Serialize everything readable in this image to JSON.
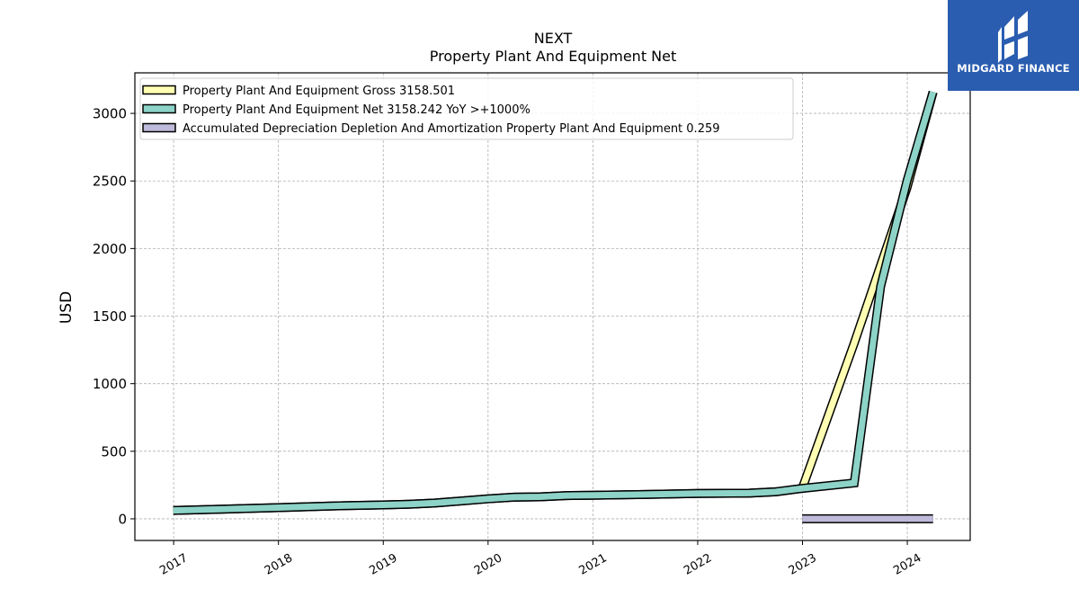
{
  "chart_data": {
    "type": "line",
    "title": "NEXT",
    "subtitle": "Property Plant And Equipment Net",
    "ylabel": "USD",
    "xlabel": "",
    "ylim": [
      -160,
      3300
    ],
    "xlim": [
      2016.63,
      2024.6
    ],
    "yticks": [
      0,
      500,
      1000,
      1500,
      2000,
      2500,
      3000
    ],
    "xticks": [
      "2017",
      "2018",
      "2019",
      "2020",
      "2021",
      "2022",
      "2023",
      "2024"
    ],
    "grid": true,
    "legend_position": "top-left",
    "series": [
      {
        "name": "Property Plant And Equipment Gross",
        "legend": "Property Plant And Equipment Gross  3158.501",
        "color": "#ffffb3",
        "points": [
          [
            "2016-12-31",
            62
          ],
          [
            "2017-06-30",
            72
          ],
          [
            "2017-12-31",
            83
          ],
          [
            "2018-06-30",
            95
          ],
          [
            "2018-12-31",
            103
          ],
          [
            "2019-03-31",
            108
          ],
          [
            "2019-06-30",
            117
          ],
          [
            "2019-12-31",
            148
          ],
          [
            "2020-03-31",
            160
          ],
          [
            "2020-06-30",
            163
          ],
          [
            "2020-09-30",
            172
          ],
          [
            "2020-12-31",
            175
          ],
          [
            "2021-06-30",
            180
          ],
          [
            "2021-12-31",
            187
          ],
          [
            "2022-06-30",
            190
          ],
          [
            "2022-09-30",
            200
          ],
          [
            "2022-12-31",
            225
          ],
          [
            "2023-06-30",
            1300
          ],
          [
            "2023-12-31",
            2450
          ],
          [
            "2024-03-31",
            3158.501
          ]
        ]
      },
      {
        "name": "Property Plant And Equipment Net",
        "legend": "Property Plant And Equipment Net  3158.242 YoY >+1000%",
        "color": "#8dd3c7",
        "points": [
          [
            "2016-12-31",
            62
          ],
          [
            "2017-06-30",
            72
          ],
          [
            "2017-12-31",
            83
          ],
          [
            "2018-06-30",
            95
          ],
          [
            "2018-12-31",
            103
          ],
          [
            "2019-03-31",
            108
          ],
          [
            "2019-06-30",
            117
          ],
          [
            "2019-12-31",
            148
          ],
          [
            "2020-03-31",
            160
          ],
          [
            "2020-06-30",
            163
          ],
          [
            "2020-09-30",
            172
          ],
          [
            "2020-12-31",
            175
          ],
          [
            "2021-06-30",
            180
          ],
          [
            "2021-12-31",
            187
          ],
          [
            "2022-06-30",
            190
          ],
          [
            "2022-09-30",
            200
          ],
          [
            "2022-12-31",
            225
          ],
          [
            "2023-06-30",
            265
          ],
          [
            "2023-09-30",
            1720
          ],
          [
            "2023-12-31",
            2500
          ],
          [
            "2024-03-31",
            3158.242
          ]
        ]
      },
      {
        "name": "Accumulated Depreciation Depletion And Amortization Property Plant And Equipment",
        "legend": "Accumulated Depreciation Depletion And Amortization Property Plant And Equipment  0.259",
        "color": "#bebada",
        "points": [
          [
            "2022-12-31",
            0.259
          ],
          [
            "2024-03-31",
            0.259
          ]
        ]
      }
    ]
  },
  "logo": {
    "text": "MIDGARD FINANCE",
    "color": "#2a5db0"
  }
}
